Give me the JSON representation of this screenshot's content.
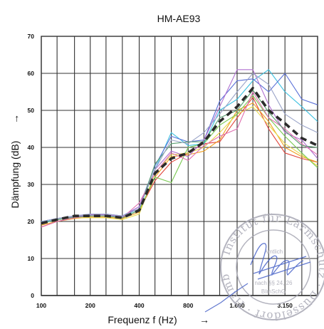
{
  "chart_data": {
    "type": "line",
    "title": "HM-AE93",
    "xlabel": "Frequenz f (Hz)",
    "xlabel_arrow": "→",
    "ylabel": "Dämpfung (dB)",
    "ylabel_arrow": "→",
    "x_ticks": [
      "100",
      "200",
      "400",
      "800",
      "1.600",
      "3.150"
    ],
    "y_ticks": [
      "0",
      "10",
      "20",
      "30",
      "40",
      "50",
      "60",
      "70"
    ],
    "ylim": [
      0,
      70
    ],
    "x": [
      100,
      125,
      160,
      200,
      250,
      315,
      400,
      500,
      630,
      800,
      1000,
      1250,
      1600,
      2000,
      2500,
      3150,
      4000,
      5000
    ],
    "grid": true,
    "legend": "none",
    "series": [
      {
        "style": "dashed",
        "color": "#2b2b2b",
        "values": [
          19.5,
          20.5,
          21.5,
          21.5,
          21.5,
          21.0,
          23.0,
          33.0,
          37.0,
          38.5,
          41.5,
          47.0,
          51.0,
          56.0,
          50.0,
          46.5,
          42.5,
          40.5
        ]
      },
      {
        "color": "#e0443a",
        "values": [
          18.5,
          20.0,
          21.0,
          21.5,
          21.5,
          21.0,
          23.0,
          31.0,
          36.0,
          38.5,
          41.0,
          41.5,
          48.0,
          53.5,
          45.0,
          38.5,
          37.0,
          36.0
        ]
      },
      {
        "color": "#f0a020",
        "values": [
          19.0,
          20.0,
          20.8,
          21.2,
          21.2,
          20.8,
          22.5,
          32.0,
          37.5,
          38.0,
          39.0,
          42.0,
          50.0,
          52.0,
          47.0,
          40.0,
          37.5,
          36.0
        ]
      },
      {
        "color": "#e6d94a",
        "values": [
          19.5,
          20.5,
          21.0,
          21.0,
          21.0,
          20.5,
          22.0,
          33.0,
          38.0,
          38.5,
          40.0,
          44.0,
          49.0,
          51.0,
          46.0,
          41.0,
          38.0,
          35.0
        ]
      },
      {
        "color": "#78c850",
        "values": [
          19.5,
          20.5,
          21.2,
          21.5,
          21.5,
          21.0,
          23.0,
          32.0,
          30.5,
          40.0,
          41.0,
          46.0,
          49.0,
          54.0,
          48.0,
          43.0,
          38.5,
          34.5
        ]
      },
      {
        "color": "#3cc0e0",
        "values": [
          19.8,
          20.5,
          21.2,
          21.8,
          21.8,
          21.2,
          23.5,
          34.0,
          44.0,
          40.5,
          41.0,
          50.0,
          53.0,
          58.0,
          61.0,
          55.0,
          51.0,
          47.0
        ]
      },
      {
        "color": "#5a70d8",
        "values": [
          20.0,
          20.8,
          21.5,
          22.0,
          22.0,
          21.5,
          24.0,
          35.0,
          43.0,
          41.5,
          42.0,
          52.5,
          58.0,
          58.5,
          55.0,
          60.0,
          53.0,
          51.5
        ]
      },
      {
        "color": "#b070d0",
        "values": [
          19.5,
          20.5,
          21.3,
          21.8,
          21.8,
          21.3,
          24.0,
          34.0,
          39.0,
          37.5,
          42.0,
          51.0,
          61.0,
          61.0,
          51.5,
          44.0,
          42.0,
          37.0
        ]
      },
      {
        "color": "#e070b0",
        "values": [
          18.5,
          20.0,
          21.0,
          21.5,
          21.5,
          21.0,
          25.0,
          33.0,
          38.5,
          36.5,
          40.5,
          43.0,
          45.0,
          55.0,
          48.0,
          45.0,
          41.0,
          38.0
        ]
      },
      {
        "color": "#5aa070",
        "values": [
          19.5,
          20.5,
          21.2,
          21.5,
          21.5,
          21.0,
          23.0,
          35.5,
          41.0,
          41.5,
          41.5,
          48.0,
          50.0,
          55.5,
          49.5,
          44.5,
          40.5,
          40.0
        ]
      },
      {
        "color": "#9aa4c8",
        "values": [
          20.0,
          20.8,
          21.5,
          22.0,
          22.0,
          21.5,
          23.5,
          34.0,
          42.0,
          41.0,
          44.0,
          49.0,
          55.0,
          60.0,
          57.0,
          49.0,
          46.0,
          44.0
        ]
      }
    ]
  },
  "stamp": {
    "text_lines": [
      "Amtlich",
      "nach §§ 24, 26",
      "BImSchG"
    ],
    "ring_text": "Institut für Lärmschutz · Düsseldorf · Hamb",
    "color": "#a8a8b4",
    "signature_color": "#4a64c8"
  }
}
